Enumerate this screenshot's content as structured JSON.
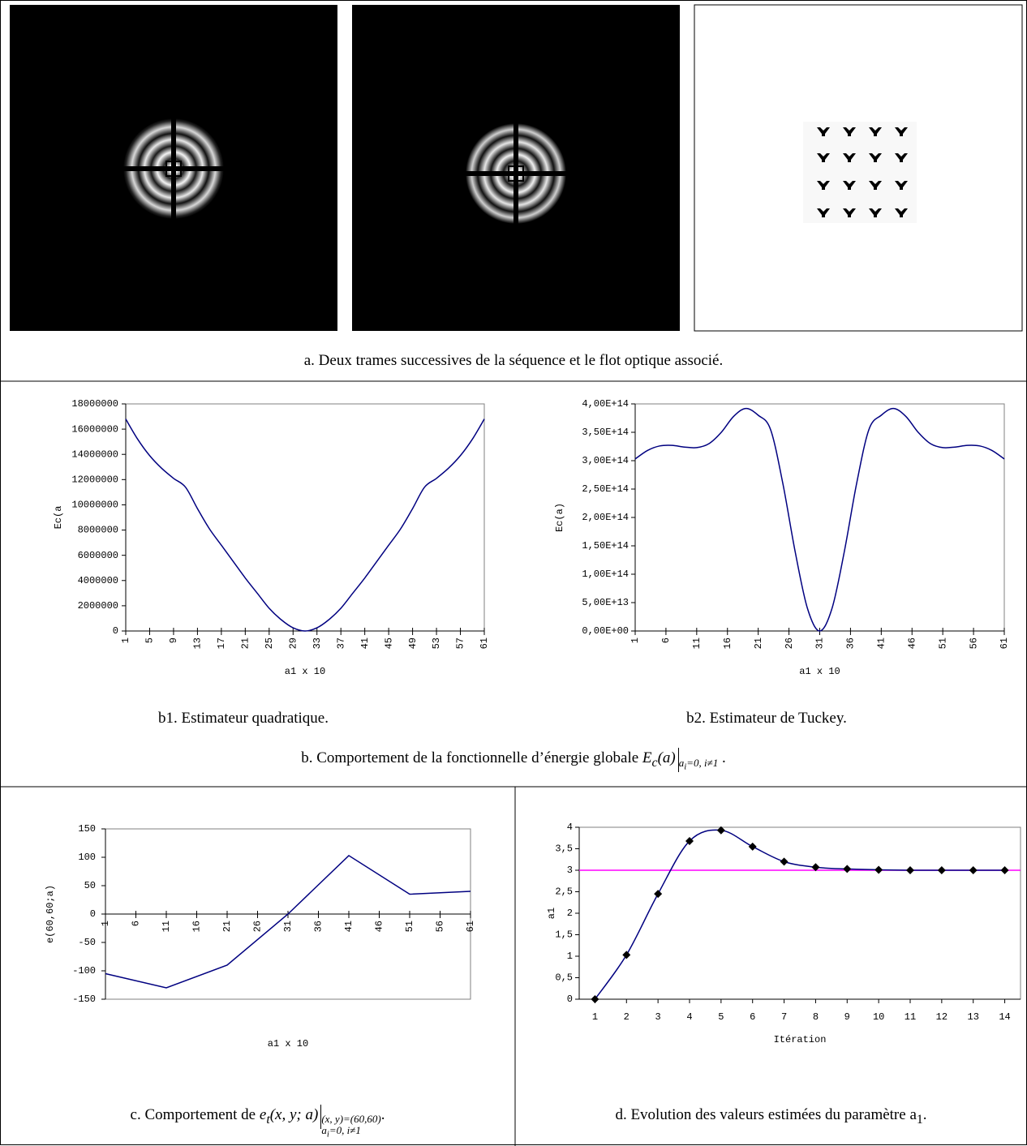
{
  "panel_a": {
    "caption": "a. Deux trames successives de la séquence et le flot optique associé."
  },
  "panel_b": {
    "b1_caption": "b1. Estimateur quadratique.",
    "b2_caption": "b2. Estimateur de Tuckey.",
    "caption": {
      "text": "b. Comportement de la fonctionnelle d’énergie globale",
      "symbol": "E",
      "symbol_sub": "c",
      "argument": "(a)",
      "condition": "a",
      "condition_sub": "i",
      "condition_rest": "=0, i≠1",
      "end": "."
    }
  },
  "panel_c": {
    "caption": {
      "text": "c. Comportement de",
      "symbol": "e",
      "symbol_sub": "t",
      "argument": "(x, y; a)",
      "condition_1": "(x, y)=(60,60)",
      "condition_2": "a",
      "condition_2_sub": "i",
      "condition_2_rest": "=0, i≠1",
      "end": "."
    }
  },
  "panel_d": {
    "caption": {
      "text": "d. Evolution des valeurs estimées du paramètre a",
      "sub": "1",
      "end": "."
    }
  },
  "chart_data": [
    {
      "type": "line",
      "x_label": "a1 x 10",
      "y_label": "Ec(a",
      "color": "#000080",
      "smooth": true,
      "x": [
        1,
        3,
        5,
        7,
        9,
        11,
        13,
        15,
        17,
        19,
        21,
        23,
        25,
        27,
        29,
        31,
        33,
        35,
        37,
        39,
        41,
        43,
        45,
        47,
        49,
        51,
        53,
        55,
        57,
        59,
        61
      ],
      "values": [
        16800000,
        15200000,
        13900000,
        12900000,
        12100000,
        11400000,
        9700000,
        8100000,
        6800000,
        5500000,
        4200000,
        3000000,
        1800000,
        900000,
        250000,
        0,
        250000,
        900000,
        1800000,
        3000000,
        4200000,
        5500000,
        6800000,
        8100000,
        9700000,
        11400000,
        12100000,
        12900000,
        13900000,
        15200000,
        16800000
      ],
      "xlim": [
        1,
        61
      ],
      "xticks": [
        1,
        5,
        9,
        13,
        17,
        21,
        25,
        29,
        33,
        37,
        41,
        45,
        49,
        53,
        57,
        61
      ],
      "xtick_labels_vertical": true,
      "ylim": [
        0,
        18000000
      ],
      "yticks": [
        0,
        2000000,
        4000000,
        6000000,
        8000000,
        10000000,
        12000000,
        14000000,
        16000000,
        18000000
      ]
    },
    {
      "type": "line",
      "x_label": "a1 x 10",
      "y_label": "Ec(a)",
      "color": "#000080",
      "smooth": true,
      "x": [
        1,
        3,
        5,
        7,
        9,
        11,
        13,
        15,
        17,
        19,
        21,
        23,
        25,
        27,
        29,
        31,
        33,
        35,
        37,
        39,
        41,
        43,
        45,
        47,
        49,
        51,
        53,
        55,
        57,
        59,
        61
      ],
      "values": [
        303000000000000.0,
        318000000000000.0,
        326000000000000.0,
        327000000000000.0,
        324000000000000.0,
        323000000000000.0,
        330000000000000.0,
        350000000000000.0,
        378000000000000.0,
        392000000000000.0,
        380000000000000.0,
        355000000000000.0,
        260000000000000.0,
        140000000000000.0,
        40000000000000.0,
        0,
        40000000000000.0,
        140000000000000.0,
        260000000000000.0,
        355000000000000.0,
        380000000000000.0,
        392000000000000.0,
        378000000000000.0,
        350000000000000.0,
        330000000000000.0,
        323000000000000.0,
        324000000000000.0,
        327000000000000.0,
        326000000000000.0,
        318000000000000.0,
        303000000000000.0
      ],
      "xlim": [
        1,
        61
      ],
      "xticks": [
        1,
        6,
        11,
        16,
        21,
        26,
        31,
        36,
        41,
        46,
        51,
        56,
        61
      ],
      "xtick_labels_vertical": true,
      "ylim": [
        0,
        400000000000000.0
      ],
      "yticks": [
        {
          "value": 0,
          "label": "0,00E+00"
        },
        {
          "value": 50000000000000.0,
          "label": "5,00E+13"
        },
        {
          "value": 100000000000000.0,
          "label": "1,00E+14"
        },
        {
          "value": 150000000000000.0,
          "label": "1,50E+14"
        },
        {
          "value": 200000000000000.0,
          "label": "2,00E+14"
        },
        {
          "value": 250000000000000.0,
          "label": "2,50E+14"
        },
        {
          "value": 300000000000000.0,
          "label": "3,00E+14"
        },
        {
          "value": 350000000000000.0,
          "label": "3,50E+14"
        },
        {
          "value": 400000000000000.0,
          "label": "4,00E+14"
        }
      ]
    },
    {
      "type": "line",
      "x_label": "a1 x 10",
      "y_label": "e(60,60;a)",
      "color": "#000080",
      "smooth": false,
      "x": [
        1,
        11,
        21,
        31,
        41,
        51,
        61
      ],
      "values": [
        -105,
        -130,
        -90,
        0,
        103,
        35,
        40
      ],
      "xlim": [
        1,
        61
      ],
      "xticks": [
        1,
        6,
        11,
        16,
        21,
        26,
        31,
        36,
        41,
        46,
        51,
        56,
        61
      ],
      "xtick_labels_vertical": true,
      "ylim": [
        -150,
        150
      ],
      "yticks": [
        -150,
        -100,
        -50,
        0,
        50,
        100,
        150
      ]
    },
    {
      "type": "line",
      "x_label": "Itération",
      "y_label": "a1",
      "color": "#000080",
      "smooth": true,
      "marker": "diamond",
      "marker_color": "#000000",
      "categories": [
        "1",
        "2",
        "3",
        "4",
        "5",
        "6",
        "7",
        "8",
        "9",
        "10",
        "11",
        "12",
        "13",
        "14"
      ],
      "values": [
        0,
        1.03,
        2.45,
        3.68,
        3.93,
        3.55,
        3.2,
        3.07,
        3.03,
        3.01,
        3,
        3,
        3,
        3
      ],
      "ylim": [
        0,
        4
      ],
      "yticks": [
        0,
        {
          "value": 0.5,
          "label": "0,5"
        },
        1,
        {
          "value": 1.5,
          "label": "1,5"
        },
        2,
        {
          "value": 2.5,
          "label": "2,5"
        },
        3,
        {
          "value": 3.5,
          "label": "3,5"
        },
        4
      ],
      "reference_line": {
        "value": 3,
        "color": "#ff00ff"
      }
    }
  ]
}
